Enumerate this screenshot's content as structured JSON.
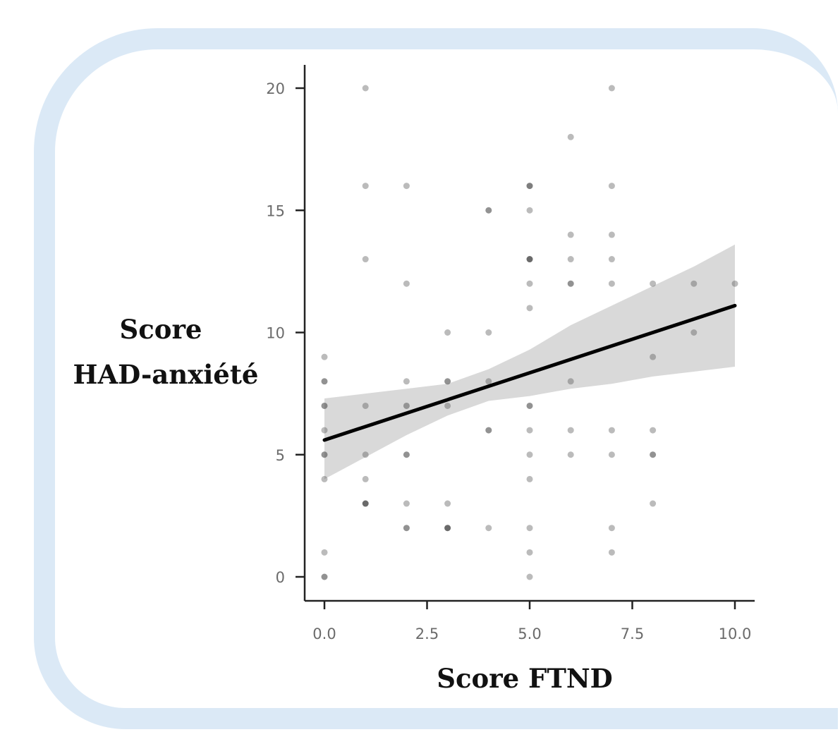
{
  "chart_data": {
    "type": "scatter",
    "title": "",
    "xlabel": "Score FTND",
    "ylabel_lines": [
      "Score",
      "HAD-anxiété"
    ],
    "xlim": [
      0,
      10
    ],
    "ylim": [
      0,
      20
    ],
    "x_ticks": [
      0,
      2.5,
      5,
      7.5,
      10
    ],
    "x_tick_labels": [
      "0.0",
      "2.5",
      "5.0",
      "7.5",
      "10.0"
    ],
    "y_ticks": [
      0,
      5,
      10,
      15,
      20
    ],
    "y_tick_labels": [
      "0",
      "5",
      "10",
      "15",
      "20"
    ],
    "grid": false,
    "points": [
      {
        "x": 0,
        "y": 9,
        "n": 1
      },
      {
        "x": 0,
        "y": 8,
        "n": 3
      },
      {
        "x": 0,
        "y": 7,
        "n": 3
      },
      {
        "x": 0,
        "y": 6,
        "n": 1
      },
      {
        "x": 0,
        "y": 5,
        "n": 3
      },
      {
        "x": 0,
        "y": 4,
        "n": 1
      },
      {
        "x": 0,
        "y": 1,
        "n": 1
      },
      {
        "x": 0,
        "y": 0,
        "n": 3
      },
      {
        "x": 1,
        "y": 20,
        "n": 1
      },
      {
        "x": 1,
        "y": 16,
        "n": 1
      },
      {
        "x": 1,
        "y": 13,
        "n": 1
      },
      {
        "x": 1,
        "y": 7,
        "n": 1
      },
      {
        "x": 1,
        "y": 5,
        "n": 1
      },
      {
        "x": 1,
        "y": 4,
        "n": 1
      },
      {
        "x": 1,
        "y": 3,
        "n": 5
      },
      {
        "x": 2,
        "y": 16,
        "n": 1
      },
      {
        "x": 2,
        "y": 12,
        "n": 1
      },
      {
        "x": 2,
        "y": 8,
        "n": 1
      },
      {
        "x": 2,
        "y": 7,
        "n": 2
      },
      {
        "x": 2,
        "y": 5,
        "n": 3
      },
      {
        "x": 2,
        "y": 3,
        "n": 1
      },
      {
        "x": 2,
        "y": 2,
        "n": 3
      },
      {
        "x": 3,
        "y": 10,
        "n": 1
      },
      {
        "x": 3,
        "y": 8,
        "n": 3
      },
      {
        "x": 3,
        "y": 7,
        "n": 1
      },
      {
        "x": 3,
        "y": 3,
        "n": 1
      },
      {
        "x": 3,
        "y": 2,
        "n": 5
      },
      {
        "x": 4,
        "y": 15,
        "n": 3
      },
      {
        "x": 4,
        "y": 10,
        "n": 1
      },
      {
        "x": 4,
        "y": 8,
        "n": 1
      },
      {
        "x": 4,
        "y": 6,
        "n": 3
      },
      {
        "x": 4,
        "y": 2,
        "n": 1
      },
      {
        "x": 5,
        "y": 16,
        "n": 4
      },
      {
        "x": 5,
        "y": 15,
        "n": 1
      },
      {
        "x": 5,
        "y": 13,
        "n": 5
      },
      {
        "x": 5,
        "y": 12,
        "n": 1
      },
      {
        "x": 5,
        "y": 11,
        "n": 1
      },
      {
        "x": 5,
        "y": 7,
        "n": 3
      },
      {
        "x": 5,
        "y": 6,
        "n": 1
      },
      {
        "x": 5,
        "y": 5,
        "n": 1
      },
      {
        "x": 5,
        "y": 4,
        "n": 1
      },
      {
        "x": 5,
        "y": 2,
        "n": 1
      },
      {
        "x": 5,
        "y": 1,
        "n": 1
      },
      {
        "x": 5,
        "y": 0,
        "n": 1
      },
      {
        "x": 6,
        "y": 18,
        "n": 1
      },
      {
        "x": 6,
        "y": 14,
        "n": 1
      },
      {
        "x": 6,
        "y": 13,
        "n": 1
      },
      {
        "x": 6,
        "y": 12,
        "n": 3
      },
      {
        "x": 6,
        "y": 8,
        "n": 1
      },
      {
        "x": 6,
        "y": 6,
        "n": 1
      },
      {
        "x": 6,
        "y": 5,
        "n": 1
      },
      {
        "x": 7,
        "y": 20,
        "n": 1
      },
      {
        "x": 7,
        "y": 16,
        "n": 1
      },
      {
        "x": 7,
        "y": 14,
        "n": 1
      },
      {
        "x": 7,
        "y": 13,
        "n": 1
      },
      {
        "x": 7,
        "y": 12,
        "n": 1
      },
      {
        "x": 7,
        "y": 6,
        "n": 1
      },
      {
        "x": 7,
        "y": 5,
        "n": 1
      },
      {
        "x": 7,
        "y": 2,
        "n": 1
      },
      {
        "x": 7,
        "y": 1,
        "n": 1
      },
      {
        "x": 8,
        "y": 12,
        "n": 1
      },
      {
        "x": 8,
        "y": 9,
        "n": 1
      },
      {
        "x": 8,
        "y": 6,
        "n": 1
      },
      {
        "x": 8,
        "y": 5,
        "n": 3
      },
      {
        "x": 8,
        "y": 3,
        "n": 1
      },
      {
        "x": 9,
        "y": 12,
        "n": 1
      },
      {
        "x": 9,
        "y": 10,
        "n": 1
      },
      {
        "x": 10,
        "y": 12,
        "n": 1
      }
    ],
    "regression_line": {
      "x": [
        0,
        10
      ],
      "y": [
        5.6,
        11.1
      ],
      "color": "#000000"
    },
    "confidence_band": {
      "x": [
        0,
        1,
        2,
        3,
        4,
        5,
        6,
        7,
        8,
        9,
        10
      ],
      "lower": [
        4.0,
        4.9,
        5.8,
        6.6,
        7.2,
        7.4,
        7.7,
        7.9,
        8.2,
        8.4,
        8.6
      ],
      "upper": [
        7.3,
        7.5,
        7.7,
        7.9,
        8.5,
        9.3,
        10.3,
        11.1,
        11.9,
        12.7,
        13.6
      ],
      "color": "#d9d9d9"
    },
    "point_color": "#555555",
    "frame_color": "#dbe9f6"
  }
}
